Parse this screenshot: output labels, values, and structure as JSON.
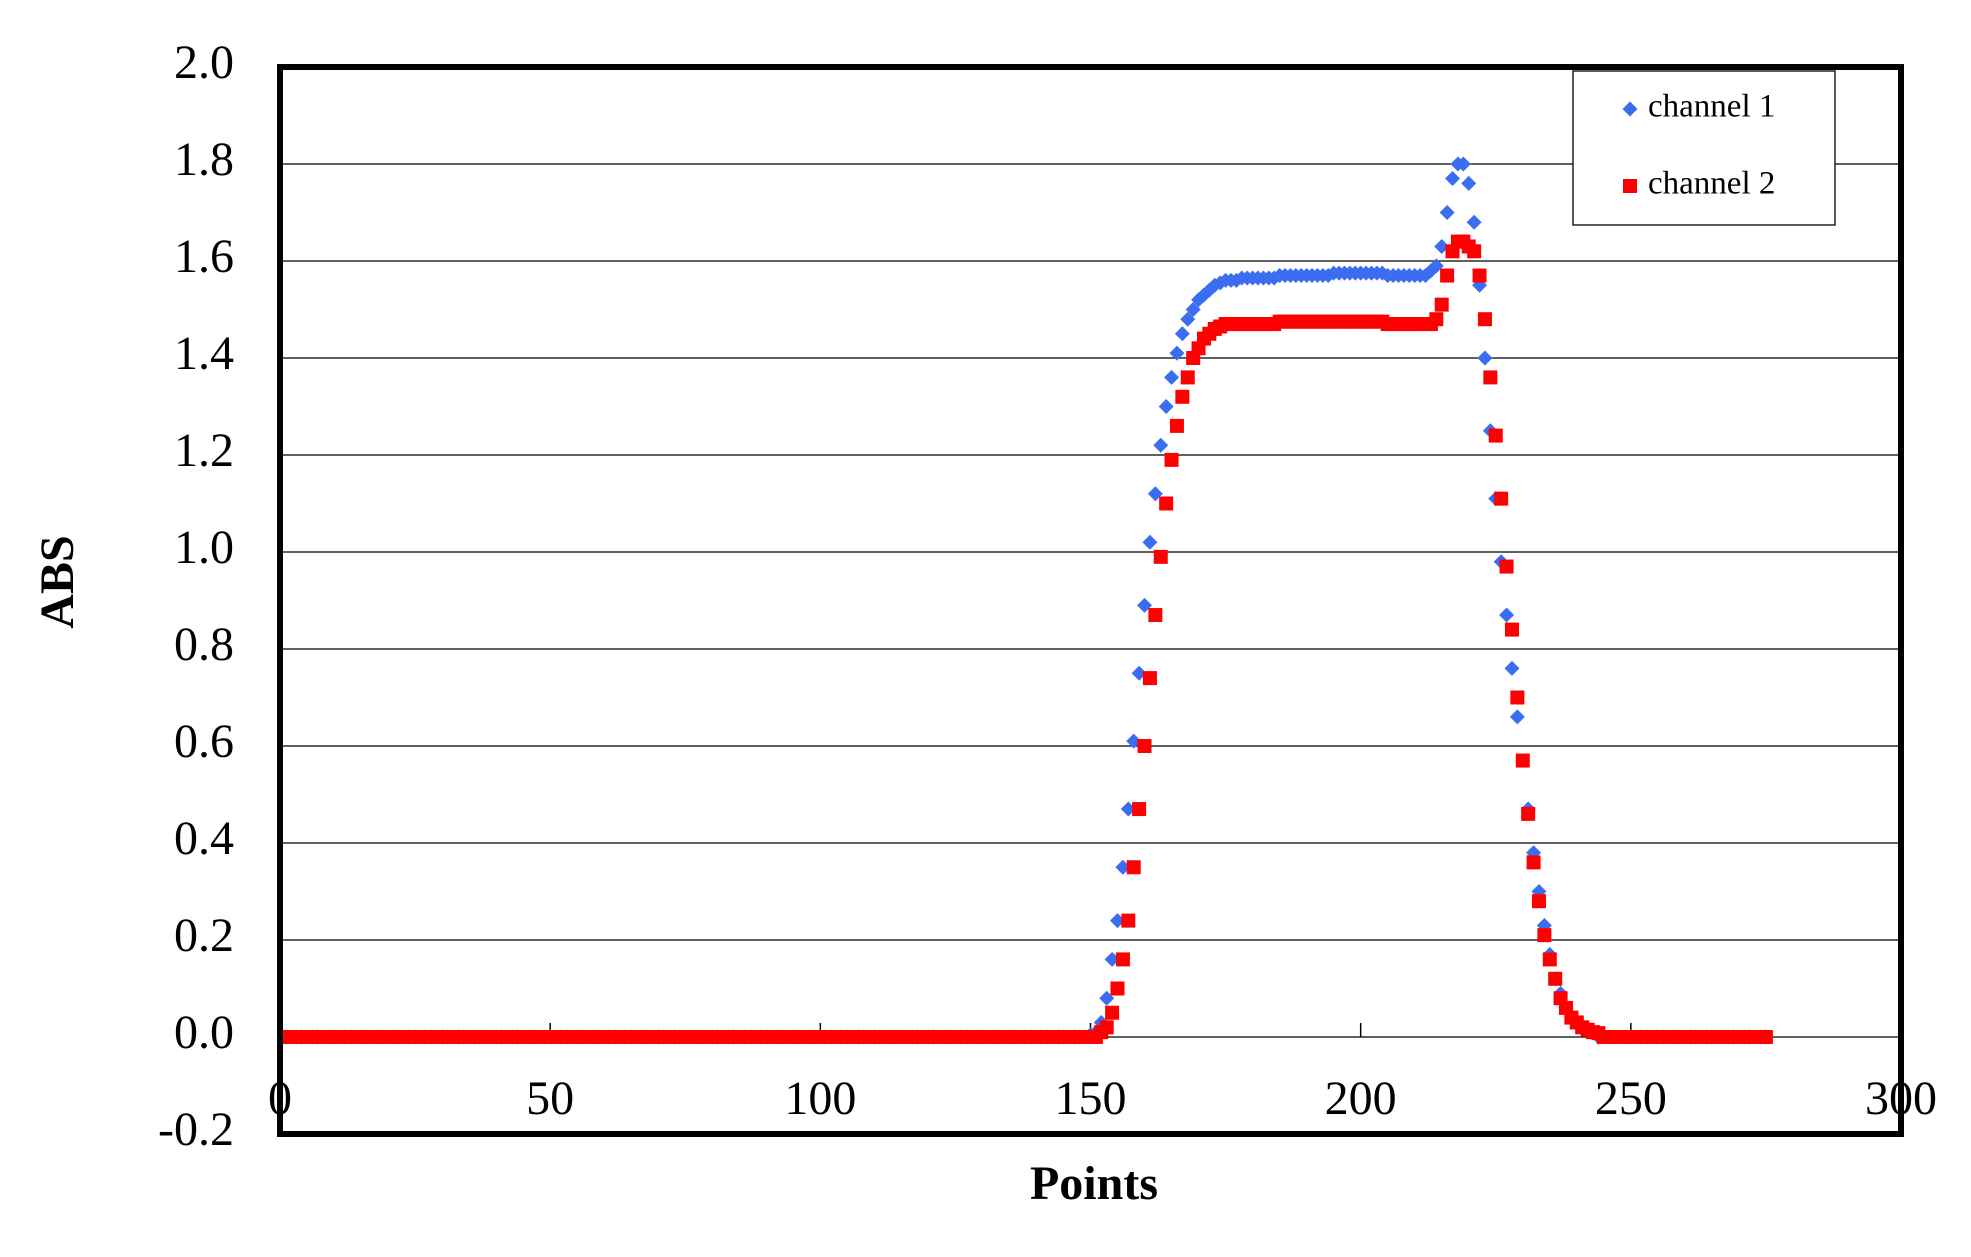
{
  "chart_data": {
    "type": "scatter",
    "xlabel": "Points",
    "ylabel": "ABS",
    "x": [
      1,
      2,
      3,
      4,
      5,
      6,
      7,
      8,
      9,
      10,
      11,
      12,
      13,
      14,
      15,
      16,
      17,
      18,
      19,
      20,
      21,
      22,
      23,
      24,
      25,
      26,
      27,
      28,
      29,
      30,
      31,
      32,
      33,
      34,
      35,
      36,
      37,
      38,
      39,
      40,
      41,
      42,
      43,
      44,
      45,
      46,
      47,
      48,
      49,
      50,
      51,
      52,
      53,
      54,
      55,
      56,
      57,
      58,
      59,
      60,
      61,
      62,
      63,
      64,
      65,
      66,
      67,
      68,
      69,
      70,
      71,
      72,
      73,
      74,
      75,
      76,
      77,
      78,
      79,
      80,
      81,
      82,
      83,
      84,
      85,
      86,
      87,
      88,
      89,
      90,
      91,
      92,
      93,
      94,
      95,
      96,
      97,
      98,
      99,
      100,
      101,
      102,
      103,
      104,
      105,
      106,
      107,
      108,
      109,
      110,
      111,
      112,
      113,
      114,
      115,
      116,
      117,
      118,
      119,
      120,
      121,
      122,
      123,
      124,
      125,
      126,
      127,
      128,
      129,
      130,
      131,
      132,
      133,
      134,
      135,
      136,
      137,
      138,
      139,
      140,
      141,
      142,
      143,
      144,
      145,
      146,
      147,
      148,
      149,
      150,
      151,
      152,
      153,
      154,
      155,
      156,
      157,
      158,
      159,
      160,
      161,
      162,
      163,
      164,
      165,
      166,
      167,
      168,
      169,
      170,
      171,
      172,
      173,
      174,
      175,
      176,
      177,
      178,
      179,
      180,
      181,
      182,
      183,
      184,
      185,
      186,
      187,
      188,
      189,
      190,
      191,
      192,
      193,
      194,
      195,
      196,
      197,
      198,
      199,
      200,
      201,
      202,
      203,
      204,
      205,
      206,
      207,
      208,
      209,
      210,
      211,
      212,
      213,
      214,
      215,
      216,
      217,
      218,
      219,
      220,
      221,
      222,
      223,
      224,
      225,
      226,
      227,
      228,
      229,
      230,
      231,
      232,
      233,
      234,
      235,
      236,
      237,
      238,
      239,
      240,
      241,
      242,
      243,
      244,
      245,
      246,
      247,
      248,
      249,
      250,
      251,
      252,
      253,
      254,
      255,
      256,
      257,
      258,
      259,
      260,
      261,
      262,
      263,
      264,
      265,
      266,
      267,
      268,
      269,
      270,
      271,
      272,
      273,
      274,
      275
    ],
    "series": [
      {
        "name": "channel 1",
        "color": "#3a6df0",
        "marker": "diamond",
        "values": [
          0,
          0,
          0,
          0,
          0,
          0,
          0,
          0,
          0,
          0,
          0,
          0,
          0,
          0,
          0,
          0,
          0,
          0,
          0,
          0,
          0,
          0,
          0,
          0,
          0,
          0,
          0,
          0,
          0,
          0,
          0,
          0,
          0,
          0,
          0,
          0,
          0,
          0,
          0,
          0,
          0,
          0,
          0,
          0,
          0,
          0,
          0,
          0,
          0,
          0,
          0,
          0,
          0,
          0,
          0,
          0,
          0,
          0,
          0,
          0,
          0,
          0,
          0,
          0,
          0,
          0,
          0,
          0,
          0,
          0,
          0,
          0,
          0,
          0,
          0,
          0,
          0,
          0,
          0,
          0,
          0,
          0,
          0,
          0,
          0,
          0,
          0,
          0,
          0,
          0,
          0,
          0,
          0,
          0,
          0,
          0,
          0,
          0,
          0,
          0,
          0,
          0,
          0,
          0,
          0,
          0,
          0,
          0,
          0,
          0,
          0,
          0,
          0,
          0,
          0,
          0,
          0,
          0,
          0,
          0,
          0,
          0,
          0,
          0,
          0,
          0,
          0,
          0,
          0,
          0,
          0,
          0,
          0,
          0,
          0,
          0,
          0,
          0,
          0,
          0,
          0,
          0,
          0,
          0,
          0,
          0,
          0,
          0,
          0,
          0.005,
          0.01,
          0.03,
          0.08,
          0.16,
          0.24,
          0.35,
          0.47,
          0.61,
          0.75,
          0.89,
          1.02,
          1.12,
          1.22,
          1.3,
          1.36,
          1.41,
          1.45,
          1.48,
          1.5,
          1.52,
          1.53,
          1.54,
          1.55,
          1.555,
          1.56,
          1.56,
          1.56,
          1.565,
          1.565,
          1.565,
          1.565,
          1.565,
          1.565,
          1.565,
          1.57,
          1.57,
          1.57,
          1.57,
          1.57,
          1.57,
          1.57,
          1.57,
          1.57,
          1.57,
          1.575,
          1.575,
          1.575,
          1.575,
          1.575,
          1.575,
          1.575,
          1.575,
          1.575,
          1.575,
          1.57,
          1.57,
          1.57,
          1.57,
          1.57,
          1.57,
          1.57,
          1.57,
          1.58,
          1.59,
          1.63,
          1.7,
          1.77,
          1.8,
          1.8,
          1.76,
          1.68,
          1.55,
          1.4,
          1.25,
          1.11,
          0.98,
          0.87,
          0.76,
          0.66,
          0.57,
          0.47,
          0.38,
          0.3,
          0.23,
          0.17,
          0.12,
          0.09,
          0.06,
          0.04,
          0.03,
          0.02,
          0.015,
          0.01,
          0,
          0,
          0,
          0,
          0,
          0,
          0,
          0,
          0,
          0,
          0,
          0,
          0,
          0,
          0,
          0,
          0,
          0,
          0,
          0,
          0,
          0,
          0,
          0,
          0,
          0,
          0,
          0,
          0,
          0,
          0,
          0
        ]
      },
      {
        "name": "channel 2",
        "color": "#ff0000",
        "marker": "square",
        "values": [
          0,
          0,
          0,
          0,
          0,
          0,
          0,
          0,
          0,
          0,
          0,
          0,
          0,
          0,
          0,
          0,
          0,
          0,
          0,
          0,
          0,
          0,
          0,
          0,
          0,
          0,
          0,
          0,
          0,
          0,
          0,
          0,
          0,
          0,
          0,
          0,
          0,
          0,
          0,
          0,
          0,
          0,
          0,
          0,
          0,
          0,
          0,
          0,
          0,
          0,
          0,
          0,
          0,
          0,
          0,
          0,
          0,
          0,
          0,
          0,
          0,
          0,
          0,
          0,
          0,
          0,
          0,
          0,
          0,
          0,
          0,
          0,
          0,
          0,
          0,
          0,
          0,
          0,
          0,
          0,
          0,
          0,
          0,
          0,
          0,
          0,
          0,
          0,
          0,
          0,
          0,
          0,
          0,
          0,
          0,
          0,
          0,
          0,
          0,
          0,
          0,
          0,
          0,
          0,
          0,
          0,
          0,
          0,
          0,
          0,
          0,
          0,
          0,
          0,
          0,
          0,
          0,
          0,
          0,
          0,
          0,
          0,
          0,
          0,
          0,
          0,
          0,
          0,
          0,
          0,
          0,
          0,
          0,
          0,
          0,
          0,
          0,
          0,
          0,
          0,
          0,
          0,
          0,
          0,
          0,
          0,
          0,
          0,
          0,
          0,
          0,
          0.01,
          0.02,
          0.05,
          0.1,
          0.16,
          0.24,
          0.35,
          0.47,
          0.6,
          0.74,
          0.87,
          0.99,
          1.1,
          1.19,
          1.26,
          1.32,
          1.36,
          1.4,
          1.42,
          1.44,
          1.45,
          1.46,
          1.465,
          1.47,
          1.47,
          1.47,
          1.47,
          1.47,
          1.47,
          1.47,
          1.47,
          1.47,
          1.47,
          1.475,
          1.475,
          1.475,
          1.475,
          1.475,
          1.475,
          1.475,
          1.475,
          1.475,
          1.475,
          1.475,
          1.475,
          1.475,
          1.475,
          1.475,
          1.475,
          1.475,
          1.475,
          1.475,
          1.475,
          1.47,
          1.47,
          1.47,
          1.47,
          1.47,
          1.47,
          1.47,
          1.47,
          1.47,
          1.48,
          1.51,
          1.57,
          1.62,
          1.64,
          1.64,
          1.63,
          1.62,
          1.57,
          1.48,
          1.36,
          1.24,
          1.11,
          0.97,
          0.84,
          0.7,
          0.57,
          0.46,
          0.36,
          0.28,
          0.21,
          0.16,
          0.12,
          0.08,
          0.06,
          0.04,
          0.03,
          0.02,
          0.015,
          0.01,
          0.008,
          0,
          0,
          0,
          0,
          0,
          0,
          0,
          0,
          0,
          0,
          0,
          0,
          0,
          0,
          0,
          0,
          0,
          0,
          0,
          0,
          0,
          0,
          0,
          0,
          0,
          0,
          0,
          0,
          0,
          0,
          0
        ]
      }
    ],
    "xlim": [
      0,
      300
    ],
    "xticks": [
      0,
      50,
      100,
      150,
      200,
      250,
      300
    ],
    "ylim": [
      -0.2,
      2.0
    ],
    "yticks": [
      -0.2,
      {
        "value": 0,
        "label": "0.0"
      },
      0.2,
      0.4,
      0.6,
      0.8,
      {
        "value": 1,
        "label": "1.0"
      },
      1.2,
      1.4,
      1.6,
      1.8,
      {
        "value": 2,
        "label": "2.0"
      }
    ],
    "grid": true,
    "legend": "upper right"
  }
}
